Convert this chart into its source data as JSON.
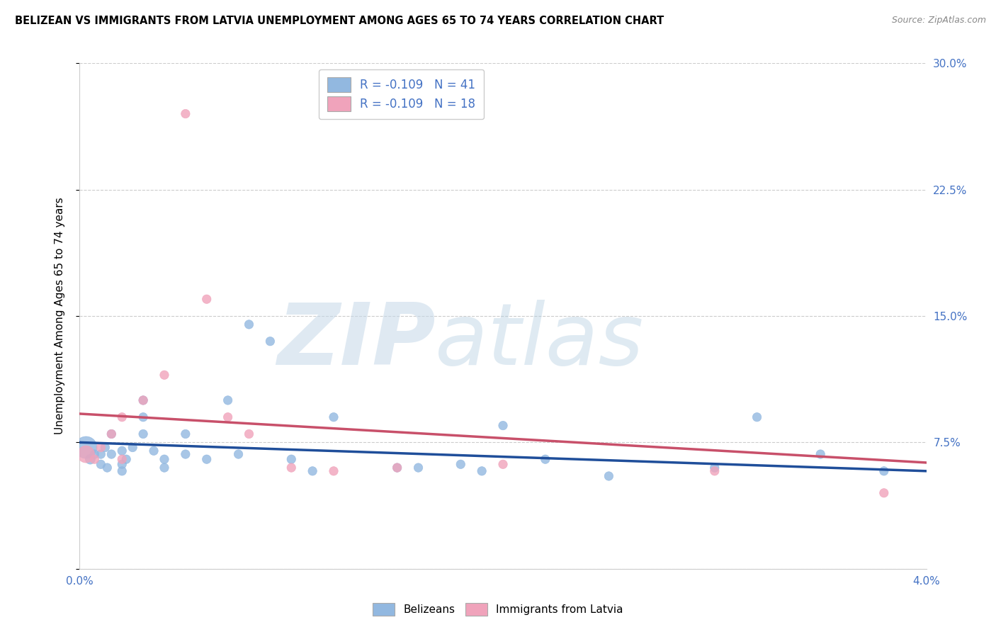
{
  "title": "BELIZEAN VS IMMIGRANTS FROM LATVIA UNEMPLOYMENT AMONG AGES 65 TO 74 YEARS CORRELATION CHART",
  "source": "Source: ZipAtlas.com",
  "ylabel": "Unemployment Among Ages 65 to 74 years",
  "xlim": [
    0.0,
    0.04
  ],
  "ylim": [
    0.0,
    0.3
  ],
  "yticks": [
    0.0,
    0.075,
    0.15,
    0.225,
    0.3
  ],
  "yticklabels_right": [
    "",
    "7.5%",
    "15.0%",
    "22.5%",
    "30.0%"
  ],
  "xticks": [
    0.0,
    0.01,
    0.02,
    0.03,
    0.04
  ],
  "xticklabels": [
    "0.0%",
    "",
    "",
    "",
    "4.0%"
  ],
  "blue_R": -0.109,
  "blue_N": 41,
  "pink_R": -0.109,
  "pink_N": 18,
  "blue_label": "Belizeans",
  "pink_label": "Immigrants from Latvia",
  "blue_color": "#92b8e0",
  "pink_color": "#f0a3bb",
  "blue_edge_color": "#92b8e0",
  "pink_edge_color": "#f0a3bb",
  "blue_line_color": "#1f4e9a",
  "pink_line_color": "#c8506a",
  "label_color": "#4472c4",
  "blue_x": [
    0.0003,
    0.0005,
    0.0007,
    0.001,
    0.001,
    0.0012,
    0.0013,
    0.0015,
    0.0015,
    0.002,
    0.002,
    0.002,
    0.0022,
    0.0025,
    0.003,
    0.003,
    0.003,
    0.0035,
    0.004,
    0.004,
    0.005,
    0.005,
    0.006,
    0.007,
    0.0075,
    0.008,
    0.009,
    0.01,
    0.011,
    0.012,
    0.015,
    0.016,
    0.018,
    0.019,
    0.02,
    0.022,
    0.025,
    0.03,
    0.032,
    0.035,
    0.038
  ],
  "blue_y": [
    0.072,
    0.065,
    0.068,
    0.068,
    0.062,
    0.072,
    0.06,
    0.08,
    0.068,
    0.07,
    0.062,
    0.058,
    0.065,
    0.072,
    0.1,
    0.09,
    0.08,
    0.07,
    0.065,
    0.06,
    0.08,
    0.068,
    0.065,
    0.1,
    0.068,
    0.145,
    0.135,
    0.065,
    0.058,
    0.09,
    0.06,
    0.06,
    0.062,
    0.058,
    0.085,
    0.065,
    0.055,
    0.06,
    0.09,
    0.068,
    0.058
  ],
  "blue_size": [
    500,
    100,
    80,
    80,
    80,
    80,
    80,
    80,
    80,
    80,
    80,
    80,
    80,
    80,
    80,
    80,
    80,
    80,
    80,
    80,
    80,
    80,
    80,
    80,
    80,
    80,
    80,
    80,
    80,
    80,
    80,
    80,
    80,
    80,
    80,
    80,
    80,
    80,
    80,
    80,
    80
  ],
  "pink_x": [
    0.0003,
    0.0007,
    0.001,
    0.0015,
    0.002,
    0.002,
    0.003,
    0.004,
    0.005,
    0.006,
    0.007,
    0.008,
    0.01,
    0.012,
    0.015,
    0.02,
    0.03,
    0.038
  ],
  "pink_y": [
    0.068,
    0.065,
    0.072,
    0.08,
    0.09,
    0.065,
    0.1,
    0.115,
    0.27,
    0.16,
    0.09,
    0.08,
    0.06,
    0.058,
    0.06,
    0.062,
    0.058,
    0.045
  ],
  "pink_size": [
    300,
    80,
    80,
    80,
    80,
    80,
    80,
    80,
    80,
    80,
    80,
    80,
    80,
    80,
    80,
    80,
    80,
    80
  ],
  "trend_blue_x0": 0.0,
  "trend_blue_y0": 0.075,
  "trend_blue_x1": 0.04,
  "trend_blue_y1": 0.058,
  "trend_pink_x0": 0.0,
  "trend_pink_y0": 0.092,
  "trend_pink_x1": 0.04,
  "trend_pink_y1": 0.063
}
